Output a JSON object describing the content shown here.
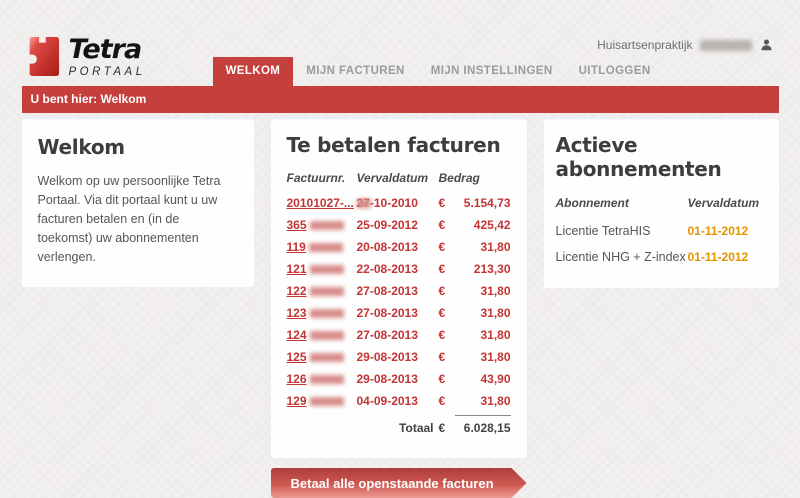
{
  "brand": {
    "title": "Tetra",
    "subtitle": "PORTAAL",
    "icon": "puzzle-piece-icon"
  },
  "account": {
    "label": "Huisartsenpraktijk",
    "name_masked": true,
    "icon": "person-icon"
  },
  "nav": {
    "items": [
      {
        "label": "WELKOM",
        "active": true
      },
      {
        "label": "MIJN FACTUREN",
        "active": false
      },
      {
        "label": "MIJN INSTELLINGEN",
        "active": false
      },
      {
        "label": "UITLOGGEN",
        "active": false
      }
    ]
  },
  "breadcrumb": {
    "text": "U bent hier: Welkom"
  },
  "welcome": {
    "title": "Welkom",
    "body": "Welkom op uw persoonlijke Tetra Portaal. Via dit portaal kunt u uw facturen betalen en (in de toekomst) uw abonnementen verlengen."
  },
  "invoices": {
    "title": "Te betalen facturen",
    "columns": [
      "Factuurnr.",
      "Vervaldatum",
      "Bedrag"
    ],
    "currency": "€",
    "rows": [
      {
        "number": "20101027-...",
        "masked": true,
        "due": "27-10-2010",
        "amount": "5.154,73"
      },
      {
        "number": "365",
        "masked": true,
        "due": "25-09-2012",
        "amount": "425,42"
      },
      {
        "number": "119",
        "masked": true,
        "due": "20-08-2013",
        "amount": "31,80"
      },
      {
        "number": "121",
        "masked": true,
        "due": "22-08-2013",
        "amount": "213,30"
      },
      {
        "number": "122",
        "masked": true,
        "due": "27-08-2013",
        "amount": "31,80"
      },
      {
        "number": "123",
        "masked": true,
        "due": "27-08-2013",
        "amount": "31,80"
      },
      {
        "number": "124",
        "masked": true,
        "due": "27-08-2013",
        "amount": "31,80"
      },
      {
        "number": "125",
        "masked": true,
        "due": "29-08-2013",
        "amount": "31,80"
      },
      {
        "number": "126",
        "masked": true,
        "due": "29-08-2013",
        "amount": "43,90"
      },
      {
        "number": "129",
        "masked": true,
        "due": "04-09-2013",
        "amount": "31,80"
      }
    ],
    "total_label": "Totaal",
    "total_amount": "6.028,15"
  },
  "subscriptions": {
    "title": "Actieve abonnementen",
    "columns": [
      "Abonnement",
      "Vervaldatum"
    ],
    "rows": [
      {
        "name": "Licentie TetraHIS",
        "due": "01-11-2012"
      },
      {
        "name": "Licentie NHG + Z-index",
        "due": "01-11-2012"
      }
    ]
  },
  "actions": {
    "pay_all_label": "Betaal alle openstaande facturen"
  },
  "colors": {
    "accent_red": "#c5403d",
    "link_red": "#c43434",
    "date_orange": "#e29400",
    "heading_gray": "#3d3d3d",
    "button_gradient_top": "#ae3d3b",
    "button_gradient_bottom": "#eb9b93"
  }
}
